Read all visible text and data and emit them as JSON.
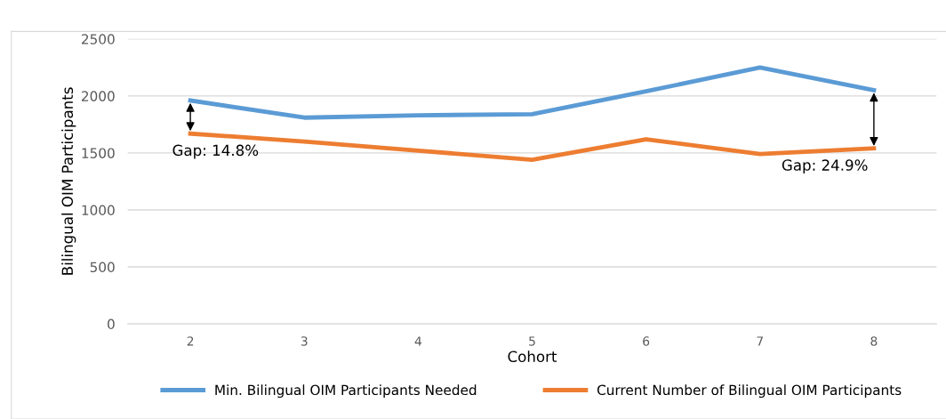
{
  "chart_data": {
    "type": "line",
    "xlabel": "Cohort",
    "ylabel": "Bilingual OIM Participants",
    "categories": [
      "2",
      "3",
      "4",
      "5",
      "6",
      "7",
      "8"
    ],
    "series": [
      {
        "name": "Min. Bilingual OIM Participants Needed",
        "color": "#5b9bd5",
        "values": [
          1960,
          1810,
          1830,
          1840,
          2040,
          2250,
          2050
        ]
      },
      {
        "name": "Current Number of Bilingual OIM Participants",
        "color": "#ed7d31",
        "values": [
          1670,
          1600,
          1520,
          1440,
          1620,
          1490,
          1540
        ]
      }
    ],
    "ylim": [
      0,
      2500
    ],
    "yticks": [
      0,
      500,
      1000,
      1500,
      2000,
      2500
    ],
    "grid": "y",
    "legend": "bottom",
    "marker": "none",
    "line_style": "solid",
    "annotations": [
      {
        "text": "Gap: 14.8%",
        "x": "2",
        "y": 1670
      },
      {
        "text": "Gap: 24.9%",
        "x": "8",
        "y": 1540
      }
    ]
  }
}
